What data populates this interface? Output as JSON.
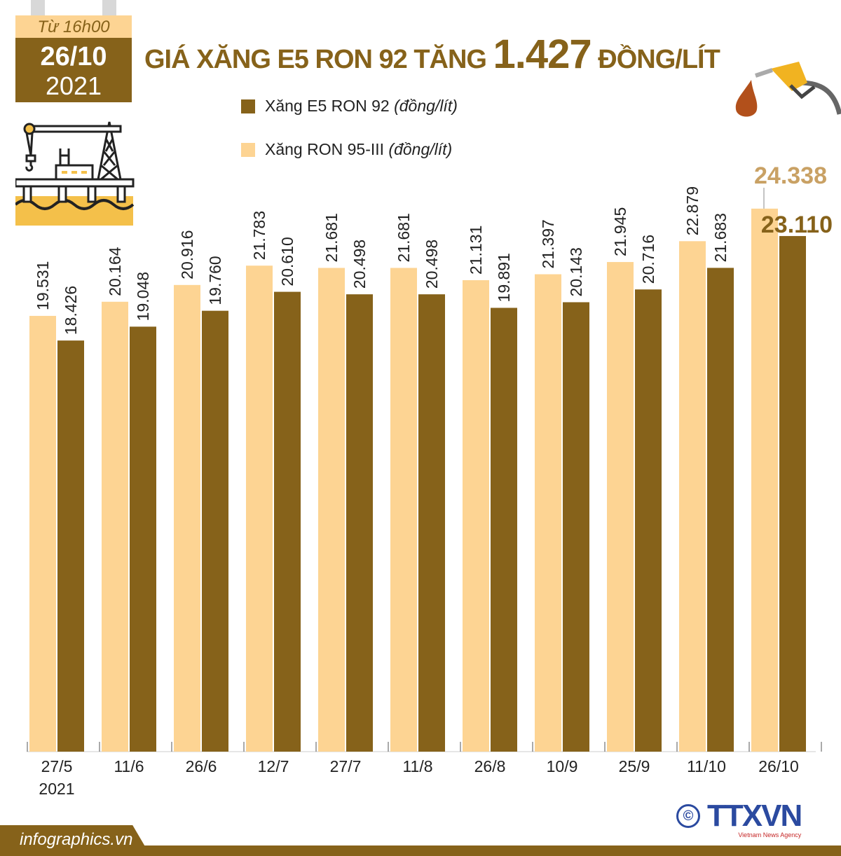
{
  "header": {
    "date_from": "Từ 16h00",
    "date_day": "26/10",
    "date_year": "2021",
    "title_prefix": "GIÁ XĂNG E5 RON 92 TĂNG",
    "title_amount": "1.427",
    "title_suffix": "ĐỒNG/LÍT"
  },
  "footer": {
    "site": "infographics.vn",
    "logo": "TTXVN",
    "logo_sub": "Vietnam News Agency",
    "copyright": "©"
  },
  "colors": {
    "dark": "#86621a",
    "light": "#fdd493",
    "highlight_light": "#c9a164"
  },
  "chart_data": {
    "type": "bar",
    "title": "GIÁ XĂNG E5 RON 92 TĂNG 1.427 ĐỒNG/LÍT",
    "categories": [
      "27/5",
      "11/6",
      "26/6",
      "12/7",
      "27/7",
      "11/8",
      "26/8",
      "10/9",
      "25/9",
      "11/10",
      "26/10"
    ],
    "first_category_sub": "2021",
    "series": [
      {
        "name": "Xăng RON 95-III",
        "unit": "(đồng/lít)",
        "color": "#fdd493",
        "values": [
          19.531,
          20.164,
          20.916,
          21.783,
          21.681,
          21.681,
          21.131,
          21.397,
          21.945,
          22.879,
          24.338
        ],
        "labels": [
          "19.531",
          "20.164",
          "20.916",
          "21.783",
          "21.681",
          "21.681",
          "21.131",
          "21.397",
          "21.945",
          "22.879",
          "24.338"
        ]
      },
      {
        "name": "Xăng E5 RON 92",
        "unit": "(đồng/lít)",
        "color": "#86621a",
        "values": [
          18.426,
          19.048,
          19.76,
          20.61,
          20.498,
          20.498,
          19.891,
          20.143,
          20.716,
          21.683,
          23.11
        ],
        "labels": [
          "18.426",
          "19.048",
          "19.760",
          "20.610",
          "20.498",
          "20.498",
          "19.891",
          "20.143",
          "20.716",
          "21.683",
          "23.110"
        ]
      }
    ],
    "ylim": [
      0,
      24.4
    ],
    "grid": false,
    "legend": "top-left"
  }
}
